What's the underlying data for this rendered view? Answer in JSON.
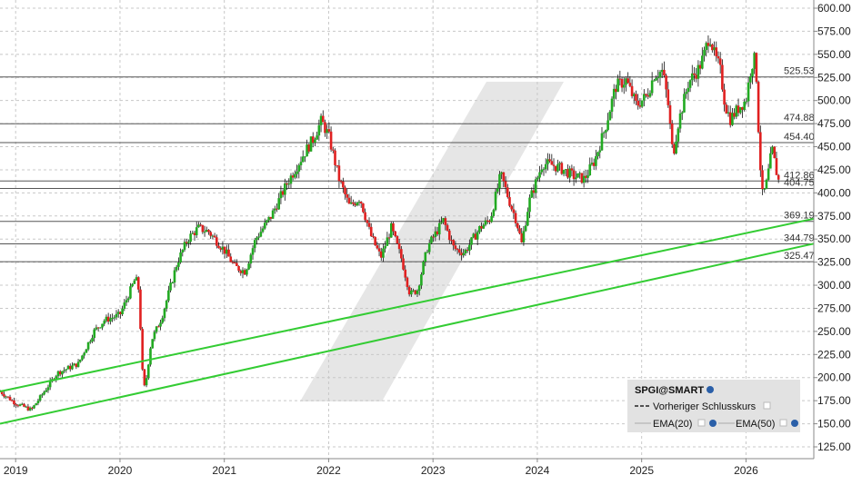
{
  "chart_data": {
    "type": "candlestick",
    "grid": true,
    "ylim": [
      125,
      600
    ],
    "xlim": [
      2018.85,
      2026.65
    ],
    "y_ticks": [
      "125.00",
      "150.00",
      "175.00",
      "200.00",
      "225.00",
      "250.00",
      "275.00",
      "300.00",
      "325.00",
      "350.00",
      "375.00",
      "400.00",
      "425.00",
      "450.00",
      "475.00",
      "500.00",
      "525.00",
      "550.00",
      "575.00",
      "600.00"
    ],
    "x_ticks": [
      "2019",
      "2020",
      "2021",
      "2022",
      "2023",
      "2024",
      "2025",
      "2026"
    ],
    "horizontal_levels": [
      {
        "value": 525.53,
        "label": "525.53"
      },
      {
        "value": 474.88,
        "label": "474.88"
      },
      {
        "value": 454.4,
        "label": "454.40"
      },
      {
        "value": 412.86,
        "label": "412.86"
      },
      {
        "value": 404.75,
        "label": "404.75"
      },
      {
        "value": 369.19,
        "label": "369.19"
      },
      {
        "value": 344.79,
        "label": "344.79"
      },
      {
        "value": 325.47,
        "label": "325.47"
      }
    ],
    "trendlines": [
      {
        "x1": 2018.85,
        "y1": 185,
        "x2": 2026.65,
        "y2": 372
      },
      {
        "x1": 2018.85,
        "y1": 150,
        "x2": 2026.65,
        "y2": 345
      }
    ],
    "price_path": [
      [
        2018.85,
        185
      ],
      [
        2019.0,
        172
      ],
      [
        2019.15,
        165
      ],
      [
        2019.4,
        205
      ],
      [
        2019.6,
        215
      ],
      [
        2019.75,
        250
      ],
      [
        2019.85,
        262
      ],
      [
        2020.0,
        268
      ],
      [
        2020.12,
        300
      ],
      [
        2020.15,
        308
      ],
      [
        2020.18,
        295
      ],
      [
        2020.22,
        195
      ],
      [
        2020.24,
        188
      ],
      [
        2020.3,
        240
      ],
      [
        2020.4,
        265
      ],
      [
        2020.55,
        325
      ],
      [
        2020.65,
        350
      ],
      [
        2020.75,
        362
      ],
      [
        2020.85,
        358
      ],
      [
        2021.0,
        338
      ],
      [
        2021.1,
        320
      ],
      [
        2021.2,
        315
      ],
      [
        2021.3,
        350
      ],
      [
        2021.45,
        375
      ],
      [
        2021.6,
        410
      ],
      [
        2021.75,
        440
      ],
      [
        2021.85,
        458
      ],
      [
        2021.93,
        478
      ],
      [
        2022.0,
        462
      ],
      [
        2022.1,
        415
      ],
      [
        2022.2,
        385
      ],
      [
        2022.3,
        395
      ],
      [
        2022.4,
        355
      ],
      [
        2022.5,
        330
      ],
      [
        2022.6,
        362
      ],
      [
        2022.7,
        328
      ],
      [
        2022.78,
        290
      ],
      [
        2022.85,
        295
      ],
      [
        2022.95,
        342
      ],
      [
        2023.1,
        370
      ],
      [
        2023.2,
        340
      ],
      [
        2023.3,
        335
      ],
      [
        2023.45,
        362
      ],
      [
        2023.55,
        372
      ],
      [
        2023.65,
        420
      ],
      [
        2023.75,
        385
      ],
      [
        2023.8,
        370
      ],
      [
        2023.85,
        345
      ],
      [
        2023.92,
        390
      ],
      [
        2024.05,
        432
      ],
      [
        2024.15,
        430
      ],
      [
        2024.25,
        425
      ],
      [
        2024.35,
        418
      ],
      [
        2024.45,
        415
      ],
      [
        2024.55,
        435
      ],
      [
        2024.65,
        470
      ],
      [
        2024.75,
        515
      ],
      [
        2024.85,
        522
      ],
      [
        2024.95,
        495
      ],
      [
        2025.05,
        505
      ],
      [
        2025.12,
        528
      ],
      [
        2025.2,
        532
      ],
      [
        2025.25,
        500
      ],
      [
        2025.3,
        440
      ],
      [
        2025.35,
        475
      ],
      [
        2025.45,
        520
      ],
      [
        2025.55,
        535
      ],
      [
        2025.6,
        550
      ],
      [
        2025.65,
        572
      ],
      [
        2025.7,
        548
      ],
      [
        2025.75,
        535
      ],
      [
        2025.8,
        495
      ],
      [
        2025.85,
        480
      ],
      [
        2025.95,
        495
      ],
      [
        2026.0,
        500
      ],
      [
        2026.05,
        538
      ],
      [
        2026.08,
        545
      ],
      [
        2026.1,
        525
      ],
      [
        2026.13,
        440
      ],
      [
        2026.16,
        395
      ],
      [
        2026.2,
        412
      ],
      [
        2026.25,
        448
      ],
      [
        2026.3,
        418
      ],
      [
        2026.33,
        406
      ]
    ],
    "colors": {
      "up": "#22aa22",
      "down": "#e02020",
      "trend": "#33cc33",
      "level": "#555555",
      "watermark": "#e6e6e6"
    }
  },
  "legend": {
    "title": "SPGI@SMART",
    "prev_close": "Vorheriger Schlusskurs",
    "ema20": "EMA(20)",
    "ema50": "EMA(50)"
  }
}
